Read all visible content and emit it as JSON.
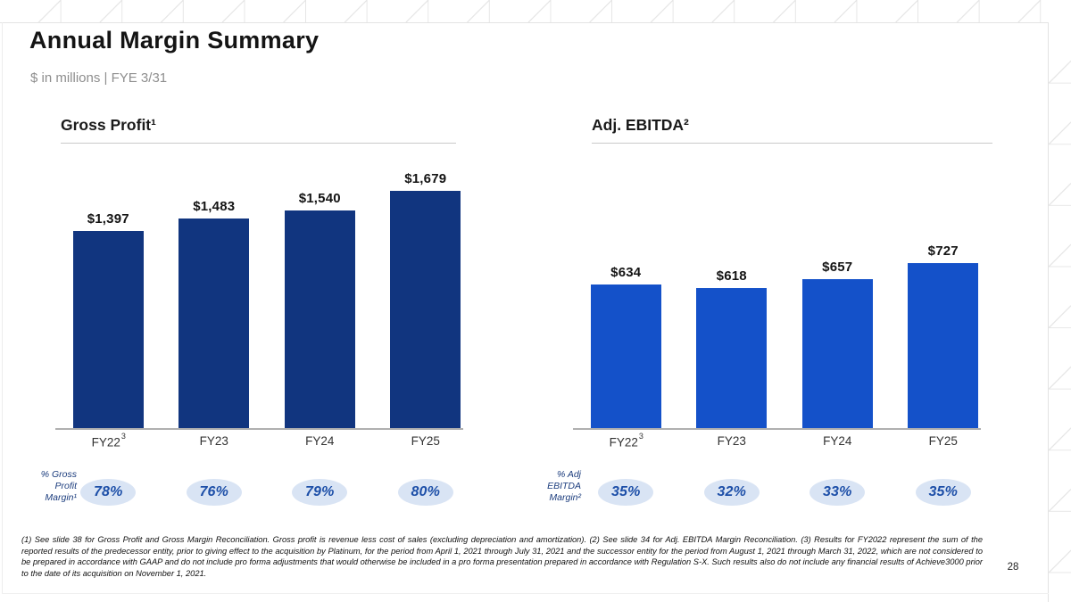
{
  "slide": {
    "title": "Annual Margin Summary",
    "subtitle": "$ in millions | FYE 3/31",
    "page_number": "28",
    "footnote": "(1) See slide 38 for Gross Profit and Gross Margin Reconciliation. Gross profit is revenue less cost of sales (excluding depreciation and amortization). (2) See slide 34 for Adj. EBITDA Margin Reconciliation. (3) Results for FY2022 represent the sum of the reported results of the predecessor entity, prior to giving effect to the acquisition by Platinum, for the period from April 1, 2021 through July 31, 2021 and the successor entity for the period from August 1, 2021 through March 31, 2022, which are not considered to be prepared in accordance with GAAP and do not include pro forma adjustments that would otherwise be included in a pro forma presentation prepared in accordance with Regulation S-X. Such results also do not include any financial results of Achieve3000 prior to the date of its acquisition on November 1, 2021."
  },
  "colors": {
    "bar_navy": "#11357F",
    "bar_blue": "#1451C9",
    "badge_bg": "#D9E4F4",
    "badge_text": "#1D4FA8",
    "margin_label": "#1B3C7D"
  },
  "chart_data": [
    {
      "type": "bar",
      "title": "Gross Profit¹",
      "categories": [
        "FY22",
        "FY23",
        "FY24",
        "FY25"
      ],
      "category_sups": [
        "3",
        "",
        "",
        ""
      ],
      "values": [
        1397,
        1483,
        1540,
        1679
      ],
      "value_labels": [
        "$1,397",
        "$1,483",
        "$1,540",
        "$1,679"
      ],
      "bar_color": "#11357F",
      "ylim": [
        0,
        1700
      ],
      "grid": false,
      "legend": "none",
      "margin_row": {
        "label_lines": [
          "% Gross",
          "Profit",
          "Margin¹"
        ],
        "values": [
          "78%",
          "76%",
          "79%",
          "80%"
        ]
      }
    },
    {
      "type": "bar",
      "title": "Adj. EBITDA²",
      "categories": [
        "FY22",
        "FY23",
        "FY24",
        "FY25"
      ],
      "category_sups": [
        "3",
        "",
        "",
        ""
      ],
      "values": [
        634,
        618,
        657,
        727
      ],
      "value_labels": [
        "$634",
        "$618",
        "$657",
        "$727"
      ],
      "bar_color": "#1451C9",
      "ylim": [
        0,
        760
      ],
      "grid": false,
      "legend": "none",
      "margin_row": {
        "label_lines": [
          "% Adj",
          "EBITDA",
          "Margin²"
        ],
        "values": [
          "35%",
          "32%",
          "33%",
          "35%"
        ]
      }
    }
  ]
}
